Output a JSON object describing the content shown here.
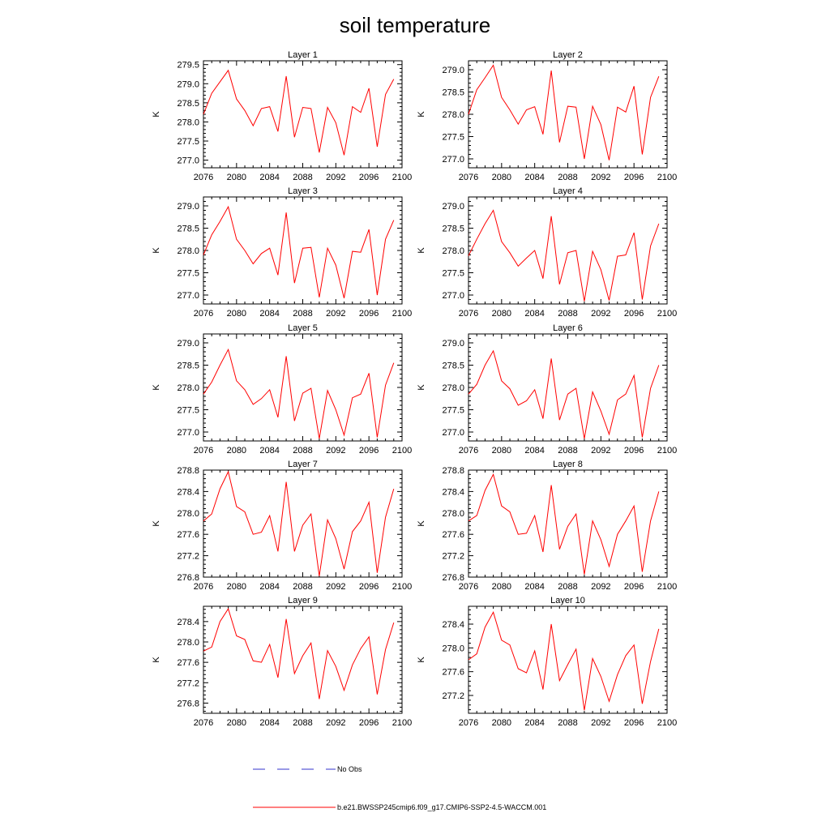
{
  "figure": {
    "title": "soil temperature",
    "legend": [
      {
        "label": "No Obs",
        "color": "#3333cc",
        "dash": "dashed"
      },
      {
        "label": "b.e21.BWSSP245cmip6.f09_g17.CMIP6-SSP2-4.5-WACCM.001",
        "color": "#ff0000",
        "dash": "solid"
      }
    ]
  },
  "chart_data": [
    {
      "type": "line",
      "title": "Layer 1",
      "xlabel": "",
      "ylabel": "K",
      "xlim": [
        2076,
        2100
      ],
      "ylim": [
        276.8,
        279.6
      ],
      "xticks": [
        "2076",
        "2080",
        "2084",
        "2088",
        "2092",
        "2096",
        "2100"
      ],
      "yticks": [
        "277.0",
        "277.5",
        "278.0",
        "278.5",
        "279.0",
        "279.5"
      ],
      "x": [
        2076,
        2077,
        2078,
        2079,
        2080,
        2081,
        2082,
        2083,
        2084,
        2085,
        2086,
        2087,
        2088,
        2089,
        2090,
        2091,
        2092,
        2093,
        2094,
        2095,
        2096,
        2097,
        2098,
        2099
      ],
      "series": [
        {
          "color": "#ff0000",
          "values": [
            278.2,
            278.75,
            279.05,
            279.35,
            278.6,
            278.3,
            277.9,
            278.35,
            278.4,
            277.75,
            279.2,
            277.6,
            278.38,
            278.35,
            277.2,
            278.38,
            277.98,
            277.13,
            278.4,
            278.25,
            278.88,
            277.35,
            278.72,
            279.12
          ]
        }
      ]
    },
    {
      "type": "line",
      "title": "Layer 2",
      "xlabel": "",
      "ylabel": "K",
      "xlim": [
        2076,
        2100
      ],
      "ylim": [
        276.8,
        279.2
      ],
      "xticks": [
        "2076",
        "2080",
        "2084",
        "2088",
        "2092",
        "2096",
        "2100"
      ],
      "yticks": [
        "277.0",
        "277.5",
        "278.0",
        "278.5",
        "279.0"
      ],
      "x": [
        2076,
        2077,
        2078,
        2079,
        2080,
        2081,
        2082,
        2083,
        2084,
        2085,
        2086,
        2087,
        2088,
        2089,
        2090,
        2091,
        2092,
        2093,
        2094,
        2095,
        2096,
        2097,
        2098,
        2099
      ],
      "series": [
        {
          "color": "#ff0000",
          "values": [
            278.0,
            278.55,
            278.82,
            279.1,
            278.38,
            278.1,
            277.78,
            278.1,
            278.17,
            277.55,
            278.98,
            277.37,
            278.18,
            278.16,
            277.0,
            278.18,
            277.77,
            276.97,
            278.16,
            278.05,
            278.63,
            277.1,
            278.38,
            278.85
          ]
        }
      ]
    },
    {
      "type": "line",
      "title": "Layer 3",
      "xlabel": "",
      "ylabel": "K",
      "xlim": [
        2076,
        2100
      ],
      "ylim": [
        276.8,
        279.2
      ],
      "xticks": [
        "2076",
        "2080",
        "2084",
        "2088",
        "2092",
        "2096",
        "2100"
      ],
      "yticks": [
        "277.0",
        "277.5",
        "278.0",
        "278.5",
        "279.0"
      ],
      "x": [
        2076,
        2077,
        2078,
        2079,
        2080,
        2081,
        2082,
        2083,
        2084,
        2085,
        2086,
        2087,
        2088,
        2089,
        2090,
        2091,
        2092,
        2093,
        2094,
        2095,
        2096,
        2097,
        2098,
        2099
      ],
      "series": [
        {
          "color": "#ff0000",
          "values": [
            277.9,
            278.35,
            278.65,
            278.98,
            278.25,
            278.0,
            277.7,
            277.93,
            278.05,
            277.45,
            278.85,
            277.27,
            278.05,
            278.07,
            276.95,
            278.05,
            277.67,
            276.93,
            277.98,
            277.96,
            278.47,
            277.0,
            278.25,
            278.68
          ]
        }
      ]
    },
    {
      "type": "line",
      "title": "Layer 4",
      "xlabel": "",
      "ylabel": "K",
      "xlim": [
        2076,
        2100
      ],
      "ylim": [
        276.8,
        279.2
      ],
      "xticks": [
        "2076",
        "2080",
        "2084",
        "2088",
        "2092",
        "2096",
        "2100"
      ],
      "yticks": [
        "277.0",
        "277.5",
        "278.0",
        "278.5",
        "279.0"
      ],
      "x": [
        2076,
        2077,
        2078,
        2079,
        2080,
        2081,
        2082,
        2083,
        2084,
        2085,
        2086,
        2087,
        2088,
        2089,
        2090,
        2091,
        2092,
        2093,
        2094,
        2095,
        2096,
        2097,
        2098,
        2099
      ],
      "series": [
        {
          "color": "#ff0000",
          "values": [
            277.88,
            278.25,
            278.6,
            278.9,
            278.2,
            277.95,
            277.65,
            277.83,
            278.0,
            277.37,
            278.77,
            277.24,
            277.95,
            278.0,
            276.86,
            277.98,
            277.57,
            276.88,
            277.87,
            277.9,
            278.4,
            276.9,
            278.1,
            278.6
          ]
        }
      ]
    },
    {
      "type": "line",
      "title": "Layer 5",
      "xlabel": "",
      "ylabel": "K",
      "xlim": [
        2076,
        2100
      ],
      "ylim": [
        276.8,
        279.2
      ],
      "xticks": [
        "2076",
        "2080",
        "2084",
        "2088",
        "2092",
        "2096",
        "2100"
      ],
      "yticks": [
        "277.0",
        "277.5",
        "278.0",
        "278.5",
        "279.0"
      ],
      "x": [
        2076,
        2077,
        2078,
        2079,
        2080,
        2081,
        2082,
        2083,
        2084,
        2085,
        2086,
        2087,
        2088,
        2089,
        2090,
        2091,
        2092,
        2093,
        2094,
        2095,
        2096,
        2097,
        2098,
        2099
      ],
      "series": [
        {
          "color": "#ff0000",
          "values": [
            277.85,
            278.12,
            278.5,
            278.85,
            278.15,
            277.95,
            277.62,
            277.75,
            277.95,
            277.33,
            278.7,
            277.25,
            277.87,
            277.98,
            276.85,
            277.93,
            277.5,
            276.93,
            277.77,
            277.85,
            278.32,
            276.88,
            278.05,
            278.55
          ]
        }
      ]
    },
    {
      "type": "line",
      "title": "Layer 6",
      "xlabel": "",
      "ylabel": "K",
      "xlim": [
        2076,
        2100
      ],
      "ylim": [
        276.8,
        279.2
      ],
      "xticks": [
        "2076",
        "2080",
        "2084",
        "2088",
        "2092",
        "2096",
        "2100"
      ],
      "yticks": [
        "277.0",
        "277.5",
        "278.0",
        "278.5",
        "279.0"
      ],
      "x": [
        2076,
        2077,
        2078,
        2079,
        2080,
        2081,
        2082,
        2083,
        2084,
        2085,
        2086,
        2087,
        2088,
        2089,
        2090,
        2091,
        2092,
        2093,
        2094,
        2095,
        2096,
        2097,
        2098,
        2099
      ],
      "series": [
        {
          "color": "#ff0000",
          "values": [
            277.85,
            278.07,
            278.5,
            278.82,
            278.15,
            277.97,
            277.6,
            277.7,
            277.95,
            277.3,
            278.65,
            277.27,
            277.85,
            277.98,
            276.85,
            277.9,
            277.47,
            276.95,
            277.72,
            277.85,
            278.27,
            276.88,
            277.98,
            278.5
          ]
        }
      ]
    },
    {
      "type": "line",
      "title": "Layer 7",
      "xlabel": "",
      "ylabel": "K",
      "xlim": [
        2076,
        2100
      ],
      "ylim": [
        276.8,
        278.8
      ],
      "xticks": [
        "2076",
        "2080",
        "2084",
        "2088",
        "2092",
        "2096",
        "2100"
      ],
      "yticks": [
        "276.8",
        "277.2",
        "277.6",
        "278.0",
        "278.4",
        "278.8"
      ],
      "x": [
        2076,
        2077,
        2078,
        2079,
        2080,
        2081,
        2082,
        2083,
        2084,
        2085,
        2086,
        2087,
        2088,
        2089,
        2090,
        2091,
        2092,
        2093,
        2094,
        2095,
        2096,
        2097,
        2098,
        2099
      ],
      "series": [
        {
          "color": "#ff0000",
          "values": [
            277.85,
            277.98,
            278.45,
            278.77,
            278.12,
            278.02,
            277.6,
            277.64,
            277.95,
            277.28,
            278.58,
            277.28,
            277.77,
            277.98,
            276.82,
            277.87,
            277.52,
            276.95,
            277.65,
            277.85,
            278.2,
            276.88,
            277.92,
            278.45
          ]
        }
      ]
    },
    {
      "type": "line",
      "title": "Layer 8",
      "xlabel": "",
      "ylabel": "K",
      "xlim": [
        2076,
        2100
      ],
      "ylim": [
        276.8,
        278.8
      ],
      "xticks": [
        "2076",
        "2080",
        "2084",
        "2088",
        "2092",
        "2096",
        "2100"
      ],
      "yticks": [
        "276.8",
        "277.2",
        "277.6",
        "278.0",
        "278.4",
        "278.8"
      ],
      "x": [
        2076,
        2077,
        2078,
        2079,
        2080,
        2081,
        2082,
        2083,
        2084,
        2085,
        2086,
        2087,
        2088,
        2089,
        2090,
        2091,
        2092,
        2093,
        2094,
        2095,
        2096,
        2097,
        2098,
        2099
      ],
      "series": [
        {
          "color": "#ff0000",
          "values": [
            277.85,
            277.95,
            278.42,
            278.72,
            278.13,
            278.02,
            277.6,
            277.62,
            277.95,
            277.27,
            278.52,
            277.32,
            277.75,
            277.98,
            276.85,
            277.85,
            277.5,
            277.0,
            277.6,
            277.85,
            278.13,
            276.9,
            277.85,
            278.4
          ]
        }
      ]
    },
    {
      "type": "line",
      "title": "Layer 9",
      "xlabel": "",
      "ylabel": "K",
      "xlim": [
        2076,
        2100
      ],
      "ylim": [
        276.6,
        278.7
      ],
      "xticks": [
        "2076",
        "2080",
        "2084",
        "2088",
        "2092",
        "2096",
        "2100"
      ],
      "yticks": [
        "276.8",
        "277.2",
        "277.6",
        "278.0",
        "278.4"
      ],
      "x": [
        2076,
        2077,
        2078,
        2079,
        2080,
        2081,
        2082,
        2083,
        2084,
        2085,
        2086,
        2087,
        2088,
        2089,
        2090,
        2091,
        2092,
        2093,
        2094,
        2095,
        2096,
        2097,
        2098,
        2099
      ],
      "series": [
        {
          "color": "#ff0000",
          "values": [
            277.82,
            277.9,
            278.4,
            278.65,
            278.12,
            278.05,
            277.63,
            277.6,
            277.95,
            277.3,
            278.45,
            277.38,
            277.73,
            277.98,
            276.88,
            277.83,
            277.52,
            277.05,
            277.55,
            277.87,
            278.1,
            276.97,
            277.85,
            278.38
          ]
        }
      ]
    },
    {
      "type": "line",
      "title": "Layer 10",
      "xlabel": "",
      "ylabel": "K",
      "xlim": [
        2076,
        2100
      ],
      "ylim": [
        276.9,
        278.7
      ],
      "xticks": [
        "2076",
        "2080",
        "2084",
        "2088",
        "2092",
        "2096",
        "2100"
      ],
      "yticks": [
        "277.2",
        "277.6",
        "278.0",
        "278.4"
      ],
      "x": [
        2076,
        2077,
        2078,
        2079,
        2080,
        2081,
        2082,
        2083,
        2084,
        2085,
        2086,
        2087,
        2088,
        2089,
        2090,
        2091,
        2092,
        2093,
        2094,
        2095,
        2096,
        2097,
        2098,
        2099
      ],
      "series": [
        {
          "color": "#ff0000",
          "values": [
            277.8,
            277.9,
            278.35,
            278.6,
            278.13,
            278.05,
            277.65,
            277.58,
            277.95,
            277.3,
            278.4,
            277.45,
            277.72,
            277.98,
            276.95,
            277.82,
            277.52,
            277.1,
            277.55,
            277.87,
            278.05,
            277.06,
            277.77,
            278.32
          ]
        }
      ]
    }
  ]
}
